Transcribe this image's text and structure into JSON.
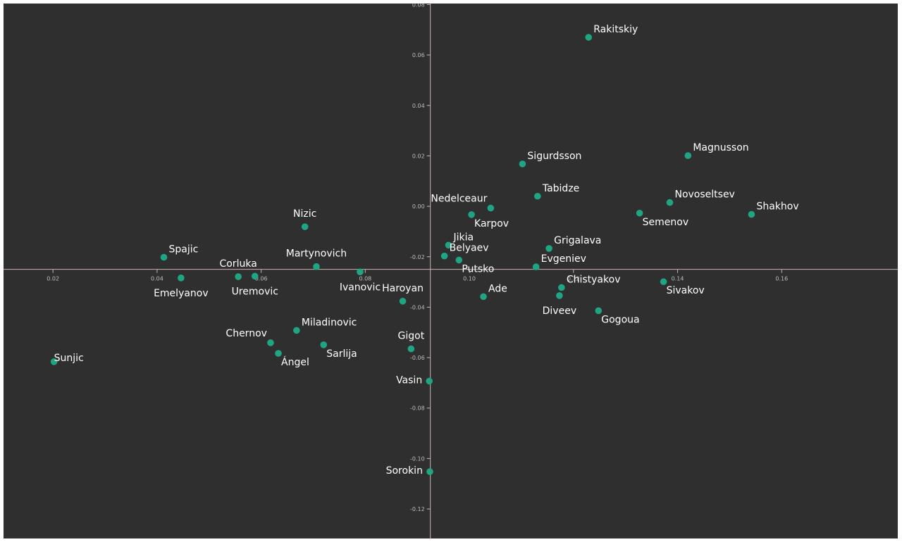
{
  "chart_data": {
    "type": "scatter",
    "title": "",
    "xlabel": "",
    "ylabel": "",
    "xlim": [
      0.0105,
      0.1823
    ],
    "ylim": [
      -0.1317,
      0.0804
    ],
    "grid": false,
    "x_ticks": [
      0.02,
      0.04,
      0.06,
      0.08,
      0.1,
      0.12,
      0.14,
      0.16
    ],
    "x_tick_labels": [
      "0.02",
      "0.04",
      "0.06",
      "0.08",
      "0.10",
      "0.12",
      "0.14",
      "0.16"
    ],
    "y_ticks": [
      0.08,
      0.06,
      0.04,
      0.02,
      0.0,
      -0.02,
      -0.04,
      -0.06,
      -0.08,
      -0.1,
      -0.12
    ],
    "y_tick_labels": [
      "0.08",
      "0.06",
      "0.04",
      "0.02",
      "0.00",
      "-0.02",
      "-0.04",
      "-0.06",
      "-0.08",
      "-0.10",
      "-0.12"
    ],
    "colors": {
      "background": "#2f2f2f",
      "point": "#1fa584",
      "axis": "#c9b6b0",
      "label": "#ffffff",
      "tick_label": "#bdbdbd"
    },
    "points": [
      {
        "name": "Rakitskiy",
        "x": 0.1229,
        "y": 0.067,
        "label_pos": "ne"
      },
      {
        "name": "Magnusson",
        "x": 0.142,
        "y": 0.0201,
        "label_pos": "ne"
      },
      {
        "name": "Sigurdsson",
        "x": 0.1102,
        "y": 0.0168,
        "label_pos": "ne"
      },
      {
        "name": "Tabidze",
        "x": 0.1131,
        "y": 0.004,
        "label_pos": "ne"
      },
      {
        "name": "Novoseltsev",
        "x": 0.1385,
        "y": 0.0015,
        "label_pos": "ne"
      },
      {
        "name": "Nedelceaur",
        "x": 0.1041,
        "y": -0.0007,
        "label_pos": "nw"
      },
      {
        "name": "Karpov",
        "x": 0.1004,
        "y": -0.0033,
        "label_pos": "se"
      },
      {
        "name": "Semenov",
        "x": 0.1327,
        "y": -0.0027,
        "label_pos": "se"
      },
      {
        "name": "Shakhov",
        "x": 0.1542,
        "y": -0.0032,
        "label_pos": "ne"
      },
      {
        "name": "Nizic",
        "x": 0.0684,
        "y": -0.0081,
        "label_pos": "n"
      },
      {
        "name": "Jikia",
        "x": 0.096,
        "y": -0.0154,
        "label_pos": "ne"
      },
      {
        "name": "Grigalava",
        "x": 0.1153,
        "y": -0.0167,
        "label_pos": "ne"
      },
      {
        "name": "Belyaev",
        "x": 0.0952,
        "y": -0.0197,
        "label_pos": "ne"
      },
      {
        "name": "Putsko",
        "x": 0.098,
        "y": -0.0213,
        "label_pos": "se"
      },
      {
        "name": "Spajic",
        "x": 0.0413,
        "y": -0.0202,
        "label_pos": "ne"
      },
      {
        "name": "Evgeniev",
        "x": 0.1128,
        "y": -0.024,
        "label_pos": "ne"
      },
      {
        "name": "Martynovich",
        "x": 0.0706,
        "y": -0.0239,
        "label_pos": "n"
      },
      {
        "name": "Ivanovic",
        "x": 0.079,
        "y": -0.026,
        "label_pos": "s"
      },
      {
        "name": "Corluka",
        "x": 0.0556,
        "y": -0.0279,
        "label_pos": "n"
      },
      {
        "name": "Uremovic",
        "x": 0.0588,
        "y": -0.0277,
        "label_pos": "s"
      },
      {
        "name": "Emelyanov",
        "x": 0.0446,
        "y": -0.0284,
        "label_pos": "s"
      },
      {
        "name": "Sivakov",
        "x": 0.1373,
        "y": -0.0299,
        "label_pos": "se"
      },
      {
        "name": "Chistyakov",
        "x": 0.1177,
        "y": -0.0322,
        "label_pos": "ne"
      },
      {
        "name": "Diveev",
        "x": 0.1173,
        "y": -0.0354,
        "label_pos": "s"
      },
      {
        "name": "Ade",
        "x": 0.1027,
        "y": -0.0358,
        "label_pos": "ne"
      },
      {
        "name": "Haroyan",
        "x": 0.0872,
        "y": -0.0376,
        "label_pos": "n"
      },
      {
        "name": "Gogoua",
        "x": 0.1248,
        "y": -0.0414,
        "label_pos": "se"
      },
      {
        "name": "Miladinovic",
        "x": 0.0668,
        "y": -0.0492,
        "label_pos": "ne"
      },
      {
        "name": "Chernov",
        "x": 0.0618,
        "y": -0.0541,
        "label_pos": "nw"
      },
      {
        "name": "Sarlija",
        "x": 0.072,
        "y": -0.0549,
        "label_pos": "se"
      },
      {
        "name": "Gigot",
        "x": 0.0888,
        "y": -0.0565,
        "label_pos": "n"
      },
      {
        "name": "Ángel",
        "x": 0.0633,
        "y": -0.0583,
        "label_pos": "se"
      },
      {
        "name": "Sunjic",
        "x": 0.0202,
        "y": -0.0616,
        "label_pos": "e"
      },
      {
        "name": "Vasin",
        "x": 0.0923,
        "y": -0.0693,
        "label_pos": "w"
      },
      {
        "name": "Sorokin",
        "x": 0.0924,
        "y": -0.1052,
        "label_pos": "w"
      }
    ]
  }
}
